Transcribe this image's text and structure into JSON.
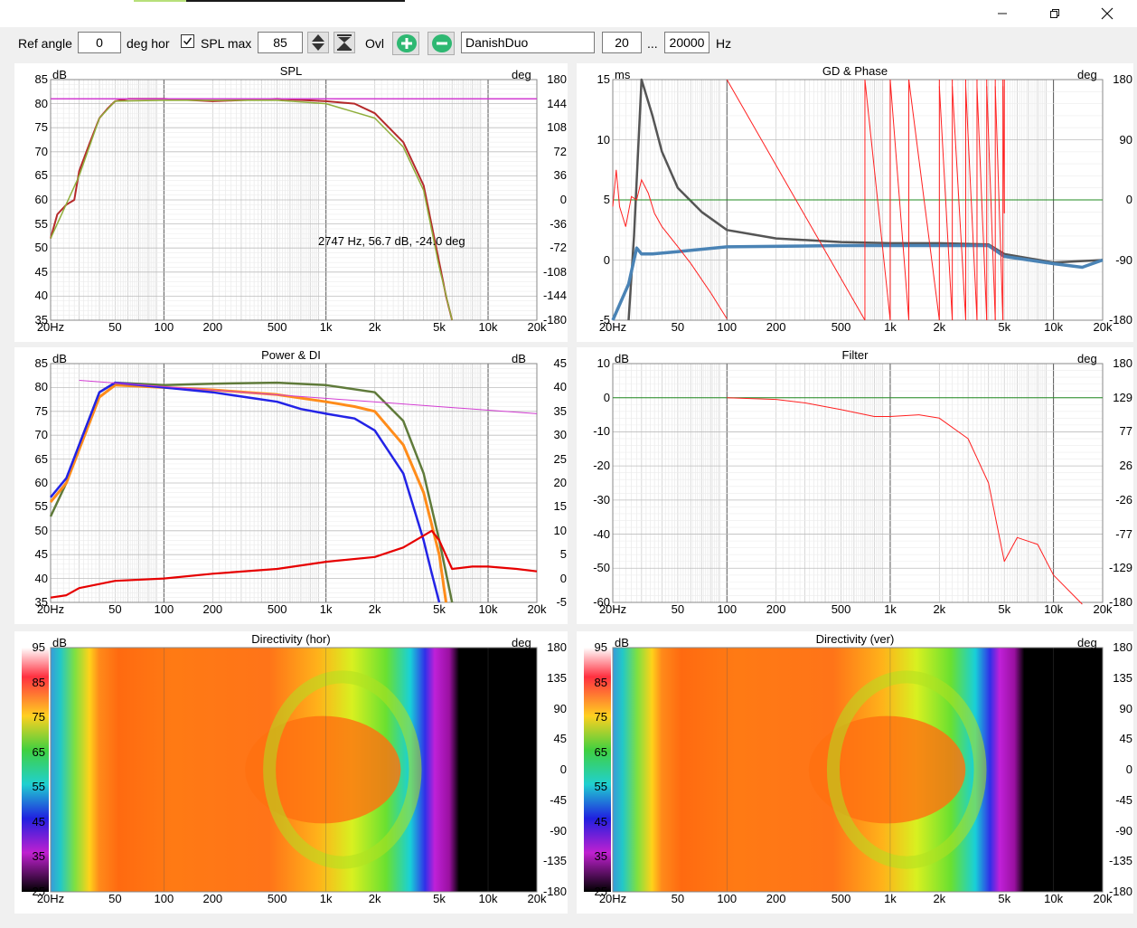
{
  "window": {
    "minimize_icon": "minimize-icon",
    "maximize_icon": "restore-icon",
    "close_icon": "close-icon"
  },
  "toolbar": {
    "ref_angle_label": "Ref angle",
    "ref_angle_value": "0",
    "deg_hor_label": "deg hor",
    "spl_max_checked": true,
    "spl_max_label": "SPL max",
    "spl_max_value": "85",
    "ovl_label": "Ovl",
    "add_icon": "plus-circle-icon",
    "remove_icon": "minus-circle-icon",
    "name_value": "DanishDuo",
    "freq_from": "20",
    "ellipsis": "...",
    "freq_to": "20000",
    "hz_label": "Hz",
    "colors": {
      "plus": "#2eb872",
      "minus": "#2eb872"
    }
  },
  "freq_ticks": [
    "20Hz",
    "50",
    "100",
    "200",
    "500",
    "1k",
    "2k",
    "5k",
    "10k",
    "20k"
  ],
  "panels": {
    "spl": {
      "title": "SPL",
      "unit_left": "dB",
      "unit_right": "deg",
      "y_left": [
        "85",
        "80",
        "75",
        "70",
        "65",
        "60",
        "55",
        "50",
        "45",
        "40",
        "35"
      ],
      "y_right": [
        "180",
        "144",
        "108",
        "72",
        "36",
        "0",
        "-36",
        "-72",
        "-108",
        "-144",
        "-180"
      ],
      "cursor_readout": "2747 Hz, 56.7 dB, -24.0 deg"
    },
    "gd": {
      "title": "GD & Phase",
      "unit_left": "ms",
      "unit_right": "deg",
      "y_left": [
        "15",
        "10",
        "5",
        "0",
        "-5"
      ],
      "y_right": [
        "180",
        "90",
        "0",
        "-90",
        "-180"
      ]
    },
    "power": {
      "title": "Power & DI",
      "unit_left": "dB",
      "unit_right": "dB",
      "y_left": [
        "85",
        "80",
        "75",
        "70",
        "65",
        "60",
        "55",
        "50",
        "45",
        "40",
        "35"
      ],
      "y_right": [
        "45",
        "40",
        "35",
        "30",
        "25",
        "20",
        "15",
        "10",
        "5",
        "0",
        "-5"
      ]
    },
    "filter": {
      "title": "Filter",
      "unit_left": "dB",
      "unit_right": "deg",
      "y_left": [
        "10",
        "0",
        "-10",
        "-20",
        "-30",
        "-40",
        "-50",
        "-60"
      ],
      "y_right": [
        "180",
        "129",
        "77",
        "26",
        "-26",
        "-77",
        "-129",
        "-180"
      ]
    },
    "dir_hor": {
      "title": "Directivity (hor)",
      "unit_left": "dB",
      "unit_right": "deg",
      "scale": [
        "95",
        "85",
        "75",
        "65",
        "55",
        "45",
        "35",
        "25"
      ],
      "y_right": [
        "180",
        "135",
        "90",
        "45",
        "0",
        "-45",
        "-90",
        "-135",
        "-180"
      ]
    },
    "dir_ver": {
      "title": "Directivity (ver)",
      "unit_left": "dB",
      "unit_right": "deg",
      "scale": [
        "95",
        "85",
        "75",
        "65",
        "55",
        "45",
        "35",
        "25"
      ],
      "y_right": [
        "180",
        "135",
        "90",
        "45",
        "0",
        "-45",
        "-90",
        "-135",
        "-180"
      ]
    }
  },
  "chart_data": [
    {
      "type": "line",
      "title": "SPL",
      "xlabel": "",
      "ylabel": "dB",
      "x_scale": "log",
      "xlim": [
        20,
        20000
      ],
      "ylim": [
        35,
        85
      ],
      "series": [
        {
          "color": "#b5292a",
          "x": [
            20,
            22,
            25,
            28,
            30,
            35,
            40,
            45,
            50,
            60,
            70,
            100,
            200,
            500,
            1000,
            1500,
            2000,
            3000,
            4000,
            5000,
            5500,
            6000
          ],
          "y": [
            52,
            57,
            59,
            60,
            66,
            72,
            77,
            79,
            80.5,
            81,
            81,
            81,
            80.5,
            81,
            80.5,
            80,
            78,
            72,
            63,
            47,
            40,
            35
          ]
        },
        {
          "color": "#8fae3c",
          "x": [
            20,
            30,
            40,
            50,
            100,
            500,
            1000,
            2000,
            3000,
            4000,
            5000,
            6000
          ],
          "y": [
            52,
            65,
            77,
            80.5,
            80.7,
            80.7,
            80,
            77,
            71,
            62,
            46,
            35
          ]
        },
        {
          "color": "#d23cd2",
          "x": [
            20,
            20000
          ],
          "y": [
            81,
            81
          ]
        }
      ]
    },
    {
      "type": "line",
      "title": "GD & Phase",
      "xlabel": "",
      "ylabel": "ms",
      "x_scale": "log",
      "xlim": [
        20,
        20000
      ],
      "ylim": [
        -5,
        15
      ],
      "series": [
        {
          "color": "#555555",
          "x": [
            25,
            27,
            30,
            35,
            40,
            50,
            70,
            100,
            200,
            500,
            1000,
            2000,
            4000,
            5000,
            10000,
            20000
          ],
          "y": [
            -5,
            2,
            15,
            12,
            9,
            6,
            4,
            2.5,
            1.8,
            1.5,
            1.4,
            1.4,
            1.3,
            0.5,
            -0.2,
            0
          ]
        },
        {
          "color": "#4a83b5",
          "x": [
            20,
            25,
            28,
            30,
            35,
            50,
            100,
            500,
            1000,
            2000,
            4000,
            5000,
            10000,
            15000,
            20000
          ],
          "y": [
            -5,
            -2,
            1,
            0.5,
            0.5,
            0.7,
            1.1,
            1.2,
            1.2,
            1.2,
            1.2,
            0.3,
            -0.3,
            -0.6,
            0
          ]
        },
        {
          "color": "#228b22",
          "x": [
            20,
            20000
          ],
          "y": [
            5,
            5
          ]
        }
      ]
    },
    {
      "type": "line",
      "title": "Power & DI",
      "xlabel": "",
      "ylabel": "dB",
      "x_scale": "log",
      "xlim": [
        20,
        20000
      ],
      "ylim": [
        35,
        85
      ],
      "series": [
        {
          "color": "#5f7a3a",
          "x": [
            20,
            25,
            30,
            40,
            50,
            100,
            200,
            500,
            1000,
            2000,
            3000,
            4000,
            5000,
            6000
          ],
          "y": [
            53,
            60,
            68,
            79,
            81,
            80.5,
            80.8,
            81,
            80.5,
            79,
            73,
            62,
            48,
            35
          ]
        },
        {
          "color": "#ff8c1a",
          "x": [
            20,
            25,
            30,
            40,
            50,
            100,
            200,
            500,
            1000,
            1500,
            2000,
            3000,
            4000,
            5000,
            5500
          ],
          "y": [
            56,
            60,
            67,
            78,
            80.5,
            80,
            79.5,
            78.5,
            77,
            76,
            75,
            68,
            58,
            45,
            35
          ]
        },
        {
          "color": "#2323e6",
          "x": [
            20,
            25,
            30,
            40,
            50,
            100,
            200,
            500,
            700,
            1000,
            1500,
            2000,
            3000,
            4000,
            4500,
            5000
          ],
          "y": [
            57,
            61,
            68,
            79,
            81,
            80,
            79,
            77,
            75.5,
            74.5,
            73.5,
            71,
            62,
            48,
            41,
            35
          ]
        },
        {
          "color": "#e60000",
          "x": [
            20,
            25,
            30,
            50,
            100,
            200,
            500,
            1000,
            2000,
            3000,
            4500,
            5000,
            6000,
            8000,
            10000,
            15000,
            20000
          ],
          "y": [
            -4,
            -3.5,
            -2,
            -0.5,
            0,
            1,
            2,
            3.5,
            4.5,
            6.5,
            10,
            8,
            2,
            2.5,
            2.5,
            2,
            1.5
          ]
        },
        {
          "color": "#d23cd2",
          "x": [
            30,
            20000
          ],
          "y": [
            81.5,
            74.5
          ]
        }
      ]
    },
    {
      "type": "line",
      "title": "Filter",
      "xlabel": "",
      "ylabel": "dB",
      "x_scale": "log",
      "xlim": [
        20,
        20000
      ],
      "ylim": [
        -60,
        10
      ],
      "series": [
        {
          "color": "#228b22",
          "x": [
            20,
            20000
          ],
          "y": [
            0,
            0
          ]
        },
        {
          "color": "#ff2020",
          "x": [
            100,
            200,
            300,
            500,
            800,
            1000,
            1500,
            2000,
            3000,
            4000,
            5000,
            6000,
            8000,
            10000,
            15000
          ],
          "y": [
            0,
            -0.5,
            -1.5,
            -3.5,
            -5.5,
            -5.5,
            -5,
            -6,
            -12,
            -25,
            -48,
            -41,
            -43,
            -52,
            -62
          ]
        }
      ]
    }
  ]
}
